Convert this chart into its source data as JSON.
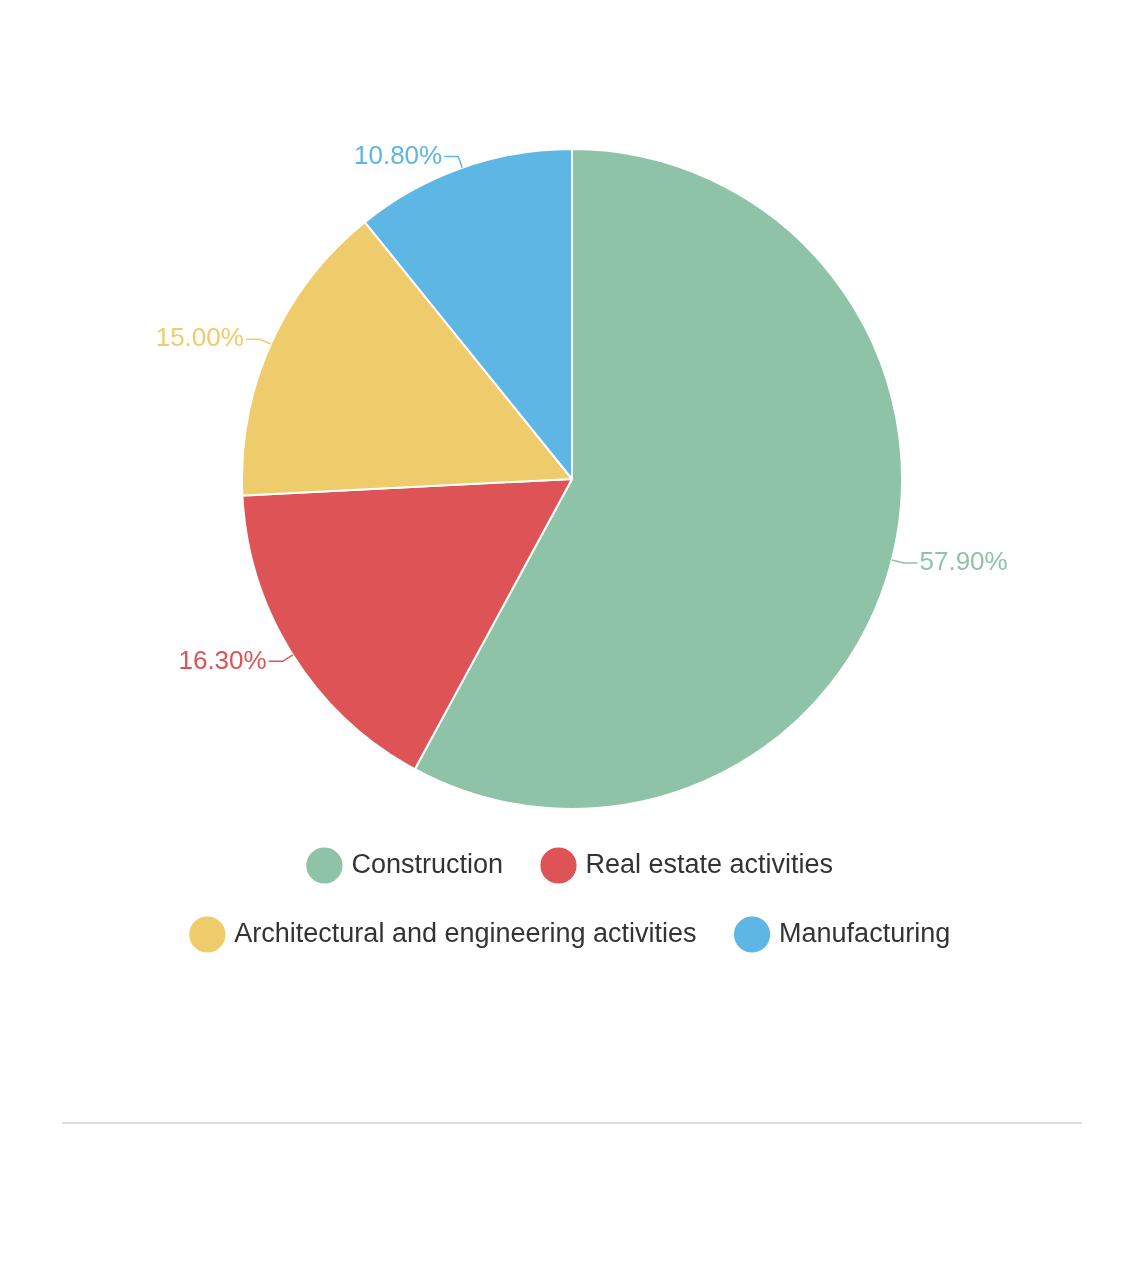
{
  "chart_data": {
    "type": "pie",
    "categories": [
      "Construction",
      "Real estate activities",
      "Architectural and engineering activities",
      "Manufacturing"
    ],
    "values": [
      57.9,
      16.3,
      15.0,
      10.8
    ],
    "value_labels": [
      "57.90%",
      "16.30%",
      "15.00%",
      "10.80%"
    ],
    "colors": [
      "#8fc3a8",
      "#de5356",
      "#eecb6b",
      "#5db6e4"
    ],
    "legend": "bottom"
  }
}
